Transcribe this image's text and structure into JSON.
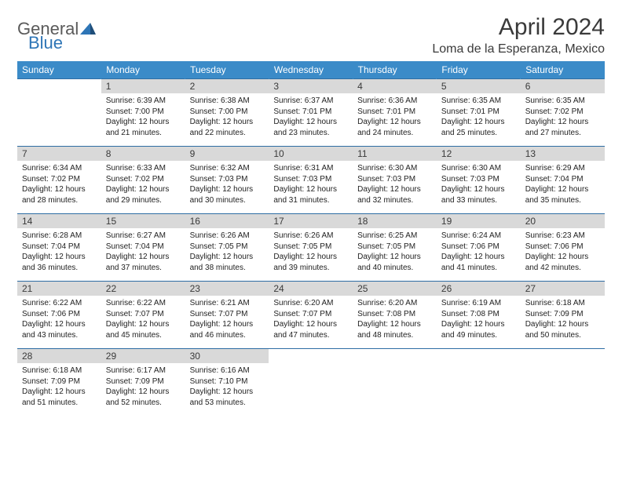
{
  "logo": {
    "part1": "General",
    "part2": "Blue"
  },
  "title": "April 2024",
  "location": "Loma de la Esperanza, Mexico",
  "colors": {
    "header_bg": "#3b8bc8",
    "header_text": "#ffffff",
    "daynum_bg": "#d9d9d9",
    "row_border": "#2e6da4",
    "logo_blue": "#2e75b6",
    "logo_gray": "#5a5a5a"
  },
  "weekdays": [
    "Sunday",
    "Monday",
    "Tuesday",
    "Wednesday",
    "Thursday",
    "Friday",
    "Saturday"
  ],
  "weeks": [
    [
      {},
      {
        "n": "1",
        "sr": "Sunrise: 6:39 AM",
        "ss": "Sunset: 7:00 PM",
        "d1": "Daylight: 12 hours",
        "d2": "and 21 minutes."
      },
      {
        "n": "2",
        "sr": "Sunrise: 6:38 AM",
        "ss": "Sunset: 7:00 PM",
        "d1": "Daylight: 12 hours",
        "d2": "and 22 minutes."
      },
      {
        "n": "3",
        "sr": "Sunrise: 6:37 AM",
        "ss": "Sunset: 7:01 PM",
        "d1": "Daylight: 12 hours",
        "d2": "and 23 minutes."
      },
      {
        "n": "4",
        "sr": "Sunrise: 6:36 AM",
        "ss": "Sunset: 7:01 PM",
        "d1": "Daylight: 12 hours",
        "d2": "and 24 minutes."
      },
      {
        "n": "5",
        "sr": "Sunrise: 6:35 AM",
        "ss": "Sunset: 7:01 PM",
        "d1": "Daylight: 12 hours",
        "d2": "and 25 minutes."
      },
      {
        "n": "6",
        "sr": "Sunrise: 6:35 AM",
        "ss": "Sunset: 7:02 PM",
        "d1": "Daylight: 12 hours",
        "d2": "and 27 minutes."
      }
    ],
    [
      {
        "n": "7",
        "sr": "Sunrise: 6:34 AM",
        "ss": "Sunset: 7:02 PM",
        "d1": "Daylight: 12 hours",
        "d2": "and 28 minutes."
      },
      {
        "n": "8",
        "sr": "Sunrise: 6:33 AM",
        "ss": "Sunset: 7:02 PM",
        "d1": "Daylight: 12 hours",
        "d2": "and 29 minutes."
      },
      {
        "n": "9",
        "sr": "Sunrise: 6:32 AM",
        "ss": "Sunset: 7:03 PM",
        "d1": "Daylight: 12 hours",
        "d2": "and 30 minutes."
      },
      {
        "n": "10",
        "sr": "Sunrise: 6:31 AM",
        "ss": "Sunset: 7:03 PM",
        "d1": "Daylight: 12 hours",
        "d2": "and 31 minutes."
      },
      {
        "n": "11",
        "sr": "Sunrise: 6:30 AM",
        "ss": "Sunset: 7:03 PM",
        "d1": "Daylight: 12 hours",
        "d2": "and 32 minutes."
      },
      {
        "n": "12",
        "sr": "Sunrise: 6:30 AM",
        "ss": "Sunset: 7:03 PM",
        "d1": "Daylight: 12 hours",
        "d2": "and 33 minutes."
      },
      {
        "n": "13",
        "sr": "Sunrise: 6:29 AM",
        "ss": "Sunset: 7:04 PM",
        "d1": "Daylight: 12 hours",
        "d2": "and 35 minutes."
      }
    ],
    [
      {
        "n": "14",
        "sr": "Sunrise: 6:28 AM",
        "ss": "Sunset: 7:04 PM",
        "d1": "Daylight: 12 hours",
        "d2": "and 36 minutes."
      },
      {
        "n": "15",
        "sr": "Sunrise: 6:27 AM",
        "ss": "Sunset: 7:04 PM",
        "d1": "Daylight: 12 hours",
        "d2": "and 37 minutes."
      },
      {
        "n": "16",
        "sr": "Sunrise: 6:26 AM",
        "ss": "Sunset: 7:05 PM",
        "d1": "Daylight: 12 hours",
        "d2": "and 38 minutes."
      },
      {
        "n": "17",
        "sr": "Sunrise: 6:26 AM",
        "ss": "Sunset: 7:05 PM",
        "d1": "Daylight: 12 hours",
        "d2": "and 39 minutes."
      },
      {
        "n": "18",
        "sr": "Sunrise: 6:25 AM",
        "ss": "Sunset: 7:05 PM",
        "d1": "Daylight: 12 hours",
        "d2": "and 40 minutes."
      },
      {
        "n": "19",
        "sr": "Sunrise: 6:24 AM",
        "ss": "Sunset: 7:06 PM",
        "d1": "Daylight: 12 hours",
        "d2": "and 41 minutes."
      },
      {
        "n": "20",
        "sr": "Sunrise: 6:23 AM",
        "ss": "Sunset: 7:06 PM",
        "d1": "Daylight: 12 hours",
        "d2": "and 42 minutes."
      }
    ],
    [
      {
        "n": "21",
        "sr": "Sunrise: 6:22 AM",
        "ss": "Sunset: 7:06 PM",
        "d1": "Daylight: 12 hours",
        "d2": "and 43 minutes."
      },
      {
        "n": "22",
        "sr": "Sunrise: 6:22 AM",
        "ss": "Sunset: 7:07 PM",
        "d1": "Daylight: 12 hours",
        "d2": "and 45 minutes."
      },
      {
        "n": "23",
        "sr": "Sunrise: 6:21 AM",
        "ss": "Sunset: 7:07 PM",
        "d1": "Daylight: 12 hours",
        "d2": "and 46 minutes."
      },
      {
        "n": "24",
        "sr": "Sunrise: 6:20 AM",
        "ss": "Sunset: 7:07 PM",
        "d1": "Daylight: 12 hours",
        "d2": "and 47 minutes."
      },
      {
        "n": "25",
        "sr": "Sunrise: 6:20 AM",
        "ss": "Sunset: 7:08 PM",
        "d1": "Daylight: 12 hours",
        "d2": "and 48 minutes."
      },
      {
        "n": "26",
        "sr": "Sunrise: 6:19 AM",
        "ss": "Sunset: 7:08 PM",
        "d1": "Daylight: 12 hours",
        "d2": "and 49 minutes."
      },
      {
        "n": "27",
        "sr": "Sunrise: 6:18 AM",
        "ss": "Sunset: 7:09 PM",
        "d1": "Daylight: 12 hours",
        "d2": "and 50 minutes."
      }
    ],
    [
      {
        "n": "28",
        "sr": "Sunrise: 6:18 AM",
        "ss": "Sunset: 7:09 PM",
        "d1": "Daylight: 12 hours",
        "d2": "and 51 minutes."
      },
      {
        "n": "29",
        "sr": "Sunrise: 6:17 AM",
        "ss": "Sunset: 7:09 PM",
        "d1": "Daylight: 12 hours",
        "d2": "and 52 minutes."
      },
      {
        "n": "30",
        "sr": "Sunrise: 6:16 AM",
        "ss": "Sunset: 7:10 PM",
        "d1": "Daylight: 12 hours",
        "d2": "and 53 minutes."
      },
      {},
      {},
      {},
      {}
    ]
  ]
}
